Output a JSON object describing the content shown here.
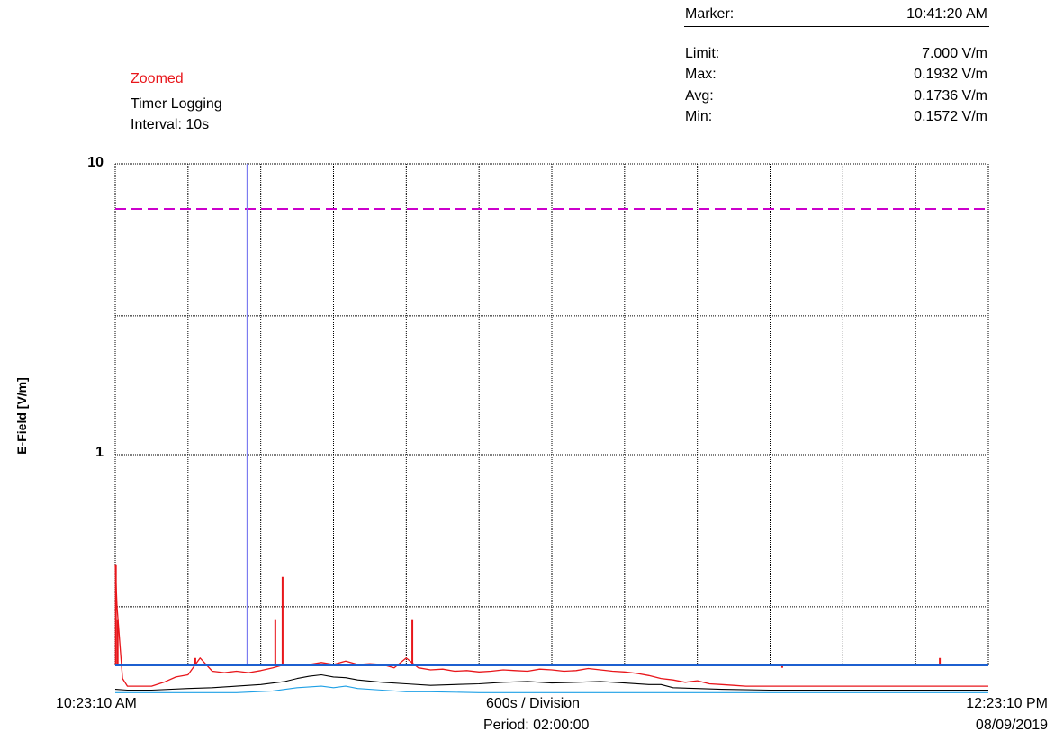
{
  "header": {
    "zoomed": "Zoomed",
    "mode": "Timer Logging",
    "interval": "Interval: 10s"
  },
  "stats": {
    "marker_label": "Marker:",
    "marker_value": "10:41:20 AM",
    "limit_label": "Limit:",
    "limit_value": "7.000 V/m",
    "max_label": "Max:",
    "max_value": "0.1932 V/m",
    "avg_label": "Avg:",
    "avg_value": "0.1736 V/m",
    "min_label": "Min:",
    "min_value": "0.1572 V/m"
  },
  "footer": {
    "start_time": "10:23:10 AM",
    "division": "600s / Division",
    "period": "Period: 02:00:00",
    "end_time": "12:23:10 PM",
    "end_date": "08/09/2019"
  },
  "colors": {
    "max_trace": "#e8161b",
    "avg_trace": "#000000",
    "min_trace": "#1ea0e6",
    "limit_line": "#cc00cc",
    "marker_line": "#7b7bf0",
    "grid": "#000000"
  },
  "chart_data": {
    "type": "line",
    "ylabel": "E-Field [V/m]",
    "ytick_labels": [
      "10",
      "1"
    ],
    "yscale": "log",
    "ylim": [
      0.15,
      10
    ],
    "xlim_seconds": [
      0,
      7200
    ],
    "x_divisions": 12,
    "grid": true,
    "limit": 7.0,
    "marker_time_seconds": 1090,
    "series": [
      {
        "key": "max",
        "x": [
          0,
          15,
          60,
          100,
          200,
          300,
          400,
          500,
          600,
          700,
          800,
          900,
          1000,
          1100,
          1200,
          1300,
          1400,
          1500,
          1600,
          1700,
          1800,
          1900,
          2000,
          2100,
          2200,
          2300,
          2400,
          2500,
          2600,
          2700,
          2800,
          2900,
          3000,
          3100,
          3200,
          3300,
          3400,
          3500,
          3600,
          3700,
          3800,
          3900,
          4000,
          4100,
          4200,
          4300,
          4400,
          4500,
          4600,
          4700,
          4800,
          4900,
          5000,
          5100,
          5200,
          5300,
          5400,
          5500,
          5600,
          5700,
          5800,
          5900,
          6000,
          6100,
          6200,
          6300,
          6400,
          6500,
          6600,
          6700,
          6800,
          6900,
          7000,
          7100,
          7200
        ],
        "values": [
          0.42,
          0.3,
          0.17,
          0.16,
          0.16,
          0.16,
          0.165,
          0.172,
          0.175,
          0.2,
          0.18,
          0.178,
          0.18,
          0.178,
          0.181,
          0.185,
          0.19,
          0.188,
          0.19,
          0.193,
          0.19,
          0.195,
          0.19,
          0.191,
          0.19,
          0.185,
          0.2,
          0.185,
          0.182,
          0.183,
          0.18,
          0.181,
          0.179,
          0.18,
          0.182,
          0.181,
          0.18,
          0.183,
          0.182,
          0.18,
          0.181,
          0.184,
          0.182,
          0.18,
          0.179,
          0.177,
          0.174,
          0.17,
          0.168,
          0.165,
          0.167,
          0.163,
          0.162,
          0.161,
          0.16,
          0.16,
          0.16,
          0.16,
          0.16,
          0.16,
          0.16,
          0.16,
          0.16,
          0.16,
          0.16,
          0.16,
          0.16,
          0.16,
          0.16,
          0.16,
          0.16,
          0.16,
          0.16,
          0.16,
          0.16
        ]
      },
      {
        "key": "avg",
        "x": [
          0,
          100,
          300,
          600,
          800,
          1000,
          1200,
          1400,
          1500,
          1600,
          1700,
          1800,
          1900,
          2000,
          2200,
          2400,
          2600,
          2800,
          3000,
          3200,
          3400,
          3600,
          3800,
          4000,
          4200,
          4400,
          4500,
          4600,
          4800,
          5000,
          5400,
          6000,
          6600,
          7200
        ],
        "values": [
          0.156,
          0.155,
          0.155,
          0.157,
          0.158,
          0.16,
          0.162,
          0.166,
          0.17,
          0.173,
          0.175,
          0.172,
          0.171,
          0.168,
          0.165,
          0.163,
          0.161,
          0.162,
          0.163,
          0.165,
          0.166,
          0.164,
          0.165,
          0.166,
          0.164,
          0.162,
          0.162,
          0.158,
          0.157,
          0.156,
          0.155,
          0.155,
          0.155,
          0.155
        ]
      },
      {
        "key": "min",
        "x": [
          0,
          1000,
          1300,
          1500,
          1700,
          1800,
          1900,
          2000,
          2200,
          2400,
          2600,
          3000,
          3600,
          4200,
          4800,
          6000,
          7200
        ],
        "values": [
          0.152,
          0.152,
          0.154,
          0.158,
          0.16,
          0.158,
          0.16,
          0.157,
          0.155,
          0.153,
          0.153,
          0.152,
          0.152,
          0.152,
          0.152,
          0.152,
          0.152
        ]
      }
    ],
    "spikes": [
      {
        "x": 5,
        "value": 0.42
      },
      {
        "x": 20,
        "value": 0.27
      },
      {
        "x": 660,
        "value": 0.2
      },
      {
        "x": 1320,
        "value": 0.27
      },
      {
        "x": 1380,
        "value": 0.38
      },
      {
        "x": 2450,
        "value": 0.27
      },
      {
        "x": 5000,
        "value": 0.19
      },
      {
        "x": 5500,
        "value": 0.185
      },
      {
        "x": 6800,
        "value": 0.2
      }
    ]
  }
}
